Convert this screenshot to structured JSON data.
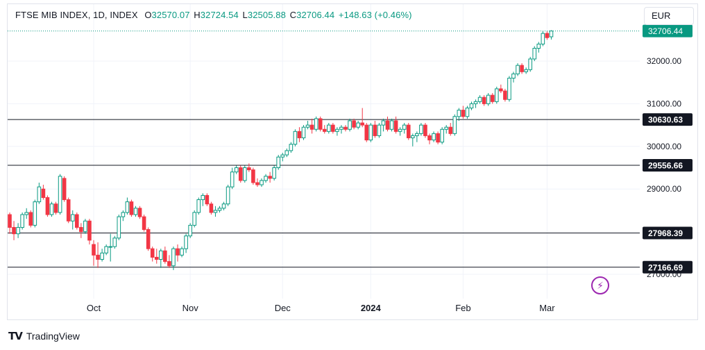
{
  "header": {
    "symbol": "FTSE MIB INDEX, 1D, INDEX",
    "open_label": "O",
    "open": "32570.07",
    "high_label": "H",
    "high": "32724.54",
    "low_label": "L",
    "low": "32505.88",
    "close_label": "C",
    "close": "32706.44",
    "change": "+148.63 (+0.46%)"
  },
  "currency_button": "EUR",
  "footer": {
    "logo": "TV",
    "brand": "TradingView"
  },
  "icons": {
    "flash": "lightning-icon"
  },
  "colors": {
    "up": "#089981",
    "down": "#f23645",
    "level": "#131722",
    "price_tag": "#089981"
  },
  "chart_data": {
    "type": "candlestick",
    "y_axis_ticks": [
      "27000.00",
      "32000.00",
      "31000.00",
      "30000.00",
      "29000.00"
    ],
    "y_axis_tick_values": [
      27000,
      32000,
      31000,
      30000,
      29000
    ],
    "x_axis_ticks": [
      {
        "label": "Oct",
        "index": 20
      },
      {
        "label": "Nov",
        "index": 43
      },
      {
        "label": "Dec",
        "index": 65
      },
      {
        "label": "2024",
        "index": 86,
        "bold": true
      },
      {
        "label": "Feb",
        "index": 108
      },
      {
        "label": "Mar",
        "index": 128
      }
    ],
    "horizontal_levels": [
      {
        "value": 30630.63,
        "label": "30630.63"
      },
      {
        "value": 29556.66,
        "label": "29556.66"
      },
      {
        "value": 27968.39,
        "label": "27968.39"
      },
      {
        "value": 27166.69,
        "label": "27166.69"
      }
    ],
    "last_price": {
      "value": 32706.44,
      "label": "32706.44"
    },
    "candles": [
      [
        28400,
        28450,
        27950,
        28100
      ],
      [
        28100,
        28250,
        27800,
        27950
      ],
      [
        27950,
        28200,
        27850,
        28100
      ],
      [
        28100,
        28450,
        28050,
        28400
      ],
      [
        28400,
        28550,
        28300,
        28450
      ],
      [
        28450,
        28500,
        28100,
        28150
      ],
      [
        28150,
        28750,
        28100,
        28700
      ],
      [
        28700,
        29150,
        28650,
        29050
      ],
      [
        29000,
        29100,
        28750,
        28800
      ],
      [
        28800,
        28850,
        28350,
        28400
      ],
      [
        28400,
        28700,
        28350,
        28650
      ],
      [
        28650,
        28700,
        28400,
        28450
      ],
      [
        28450,
        29350,
        28400,
        29300
      ],
      [
        29250,
        29300,
        28700,
        28750
      ],
      [
        28750,
        28800,
        28200,
        28250
      ],
      [
        28250,
        28500,
        28050,
        28400
      ],
      [
        28400,
        28450,
        28050,
        28100
      ],
      [
        28100,
        28200,
        27850,
        28000
      ],
      [
        28000,
        28300,
        27950,
        28250
      ],
      [
        28250,
        28300,
        27700,
        27800
      ],
      [
        27700,
        27800,
        27200,
        27450
      ],
      [
        27450,
        27750,
        27150,
        27350
      ],
      [
        27350,
        27600,
        27300,
        27500
      ],
      [
        27500,
        27700,
        27450,
        27650
      ],
      [
        27650,
        27950,
        27300,
        27650
      ],
      [
        27650,
        27900,
        27600,
        27850
      ],
      [
        27850,
        28400,
        27800,
        28350
      ],
      [
        28350,
        28500,
        28250,
        28450
      ],
      [
        28450,
        28800,
        28400,
        28700
      ],
      [
        28700,
        28750,
        28350,
        28400
      ],
      [
        28400,
        28600,
        28350,
        28550
      ],
      [
        28550,
        28600,
        28300,
        28350
      ],
      [
        28350,
        28400,
        28000,
        28050
      ],
      [
        28050,
        28100,
        27550,
        27600
      ],
      [
        27600,
        27650,
        27300,
        27400
      ],
      [
        27400,
        27600,
        27250,
        27350
      ],
      [
        27350,
        27600,
        27150,
        27550
      ],
      [
        27550,
        27650,
        27250,
        27300
      ],
      [
        27300,
        27450,
        27150,
        27200
      ],
      [
        27200,
        27650,
        27100,
        27600
      ],
      [
        27600,
        27700,
        27300,
        27450
      ],
      [
        27450,
        27650,
        27400,
        27600
      ],
      [
        27600,
        27950,
        27500,
        27900
      ],
      [
        27900,
        28200,
        27850,
        28150
      ],
      [
        28150,
        28500,
        28100,
        28450
      ],
      [
        28450,
        28800,
        28400,
        28750
      ],
      [
        28750,
        28900,
        28600,
        28850
      ],
      [
        28850,
        28900,
        28600,
        28650
      ],
      [
        28650,
        28700,
        28400,
        28450
      ],
      [
        28450,
        28600,
        28350,
        28500
      ],
      [
        28500,
        28600,
        28450,
        28550
      ],
      [
        28550,
        28700,
        28500,
        28650
      ],
      [
        28650,
        29100,
        28600,
        29050
      ],
      [
        29050,
        29500,
        29000,
        29400
      ],
      [
        29400,
        29550,
        29350,
        29500
      ],
      [
        29500,
        29550,
        29150,
        29200
      ],
      [
        29200,
        29550,
        29150,
        29500
      ],
      [
        29500,
        29600,
        29400,
        29450
      ],
      [
        29450,
        29500,
        29100,
        29150
      ],
      [
        29150,
        29250,
        29050,
        29100
      ],
      [
        29100,
        29250,
        29050,
        29200
      ],
      [
        29200,
        29350,
        29150,
        29300
      ],
      [
        29300,
        29400,
        29150,
        29250
      ],
      [
        29250,
        29550,
        29200,
        29500
      ],
      [
        29500,
        29800,
        29450,
        29750
      ],
      [
        29750,
        29850,
        29650,
        29800
      ],
      [
        29800,
        29950,
        29750,
        29900
      ],
      [
        29900,
        30100,
        29850,
        30050
      ],
      [
        30050,
        30400,
        30000,
        30350
      ],
      [
        30350,
        30450,
        30100,
        30200
      ],
      [
        30200,
        30500,
        30150,
        30450
      ],
      [
        30450,
        30600,
        30400,
        30500
      ],
      [
        30500,
        30650,
        30300,
        30400
      ],
      [
        30400,
        30700,
        30350,
        30650
      ],
      [
        30650,
        30700,
        30350,
        30400
      ],
      [
        30400,
        30500,
        30300,
        30350
      ],
      [
        30350,
        30550,
        30300,
        30500
      ],
      [
        30500,
        30550,
        30300,
        30350
      ],
      [
        30350,
        30450,
        30250,
        30400
      ],
      [
        30400,
        30500,
        30300,
        30450
      ],
      [
        30450,
        30500,
        30350,
        30400
      ],
      [
        30400,
        30650,
        30350,
        30600
      ],
      [
        30600,
        30650,
        30400,
        30450
      ],
      [
        30450,
        30600,
        30400,
        30550
      ],
      [
        30550,
        30900,
        30450,
        30500
      ],
      [
        30500,
        30550,
        30100,
        30150
      ],
      [
        30150,
        30550,
        30100,
        30500
      ],
      [
        30500,
        30600,
        30200,
        30250
      ],
      [
        30250,
        30550,
        30200,
        30500
      ],
      [
        30500,
        30650,
        30350,
        30600
      ],
      [
        30600,
        30700,
        30350,
        30400
      ],
      [
        30400,
        30650,
        30350,
        30600
      ],
      [
        30600,
        30700,
        30300,
        30350
      ],
      [
        30350,
        30450,
        30250,
        30400
      ],
      [
        30400,
        30550,
        30300,
        30500
      ],
      [
        30500,
        30550,
        30150,
        30200
      ],
      [
        30200,
        30300,
        30000,
        30250
      ],
      [
        30250,
        30350,
        30100,
        30300
      ],
      [
        30300,
        30550,
        30250,
        30500
      ],
      [
        30500,
        30550,
        30200,
        30250
      ],
      [
        30250,
        30300,
        30050,
        30150
      ],
      [
        30150,
        30350,
        30100,
        30300
      ],
      [
        30300,
        30350,
        30050,
        30100
      ],
      [
        30100,
        30450,
        30050,
        30400
      ],
      [
        30400,
        30500,
        30300,
        30450
      ],
      [
        30450,
        30550,
        30250,
        30300
      ],
      [
        30300,
        30750,
        30250,
        30700
      ],
      [
        30700,
        30900,
        30600,
        30850
      ],
      [
        30850,
        30950,
        30650,
        30700
      ],
      [
        30700,
        30950,
        30650,
        30900
      ],
      [
        30900,
        31050,
        30850,
        31000
      ],
      [
        31000,
        31100,
        30900,
        31050
      ],
      [
        31050,
        31200,
        31000,
        31150
      ],
      [
        31150,
        31200,
        30950,
        31000
      ],
      [
        31000,
        31250,
        30950,
        31200
      ],
      [
        31200,
        31250,
        31000,
        31050
      ],
      [
        31050,
        31400,
        31000,
        31350
      ],
      [
        31350,
        31450,
        31250,
        31300
      ],
      [
        31300,
        31350,
        31050,
        31100
      ],
      [
        31100,
        31650,
        31050,
        31600
      ],
      [
        31600,
        31750,
        31500,
        31700
      ],
      [
        31700,
        31950,
        31650,
        31900
      ],
      [
        31900,
        31950,
        31700,
        31750
      ],
      [
        31750,
        31850,
        31700,
        31800
      ],
      [
        31800,
        32100,
        31750,
        32050
      ],
      [
        32050,
        32350,
        32000,
        32300
      ],
      [
        32300,
        32450,
        32200,
        32400
      ],
      [
        32400,
        32700,
        32350,
        32650
      ],
      [
        32650,
        32700,
        32500,
        32550
      ],
      [
        32570.07,
        32724.54,
        32505.88,
        32706.44
      ]
    ]
  }
}
